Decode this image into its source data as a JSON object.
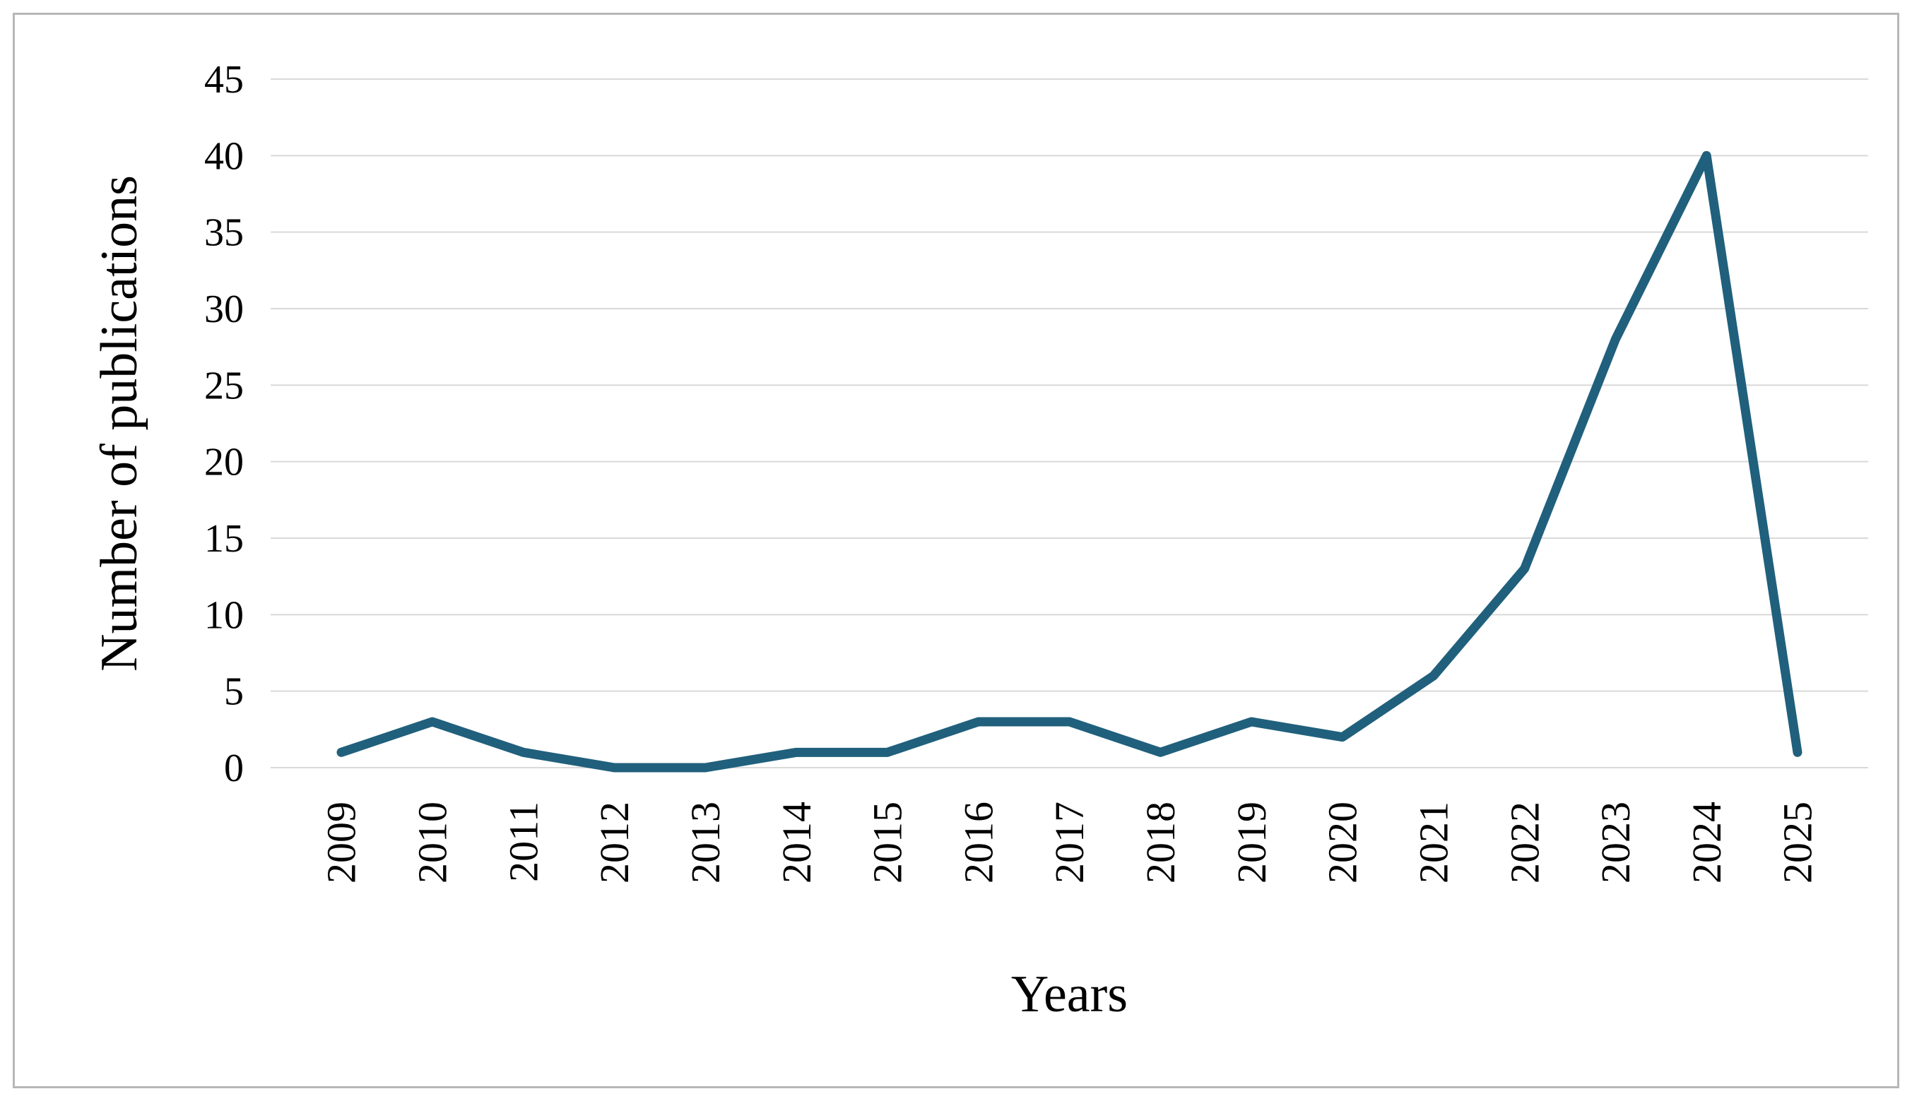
{
  "figure": {
    "border_color": "#b7b7b7",
    "background": "#ffffff"
  },
  "chart_data": {
    "type": "line",
    "title": "",
    "xlabel": "Years",
    "ylabel": "Number of publications",
    "categories": [
      "2009",
      "2010",
      "2011",
      "2012",
      "2013",
      "2014",
      "2015",
      "2016",
      "2017",
      "2018",
      "2019",
      "2020",
      "2021",
      "2022",
      "2023",
      "2024",
      "2025"
    ],
    "values": [
      1,
      3,
      1,
      0,
      0,
      1,
      1,
      3,
      3,
      1,
      3,
      2,
      6,
      13,
      28,
      40,
      1
    ],
    "ylim": [
      0,
      45
    ],
    "ytick_step": 5,
    "ytick_labels": [
      "0",
      "5",
      "10",
      "15",
      "20",
      "25",
      "30",
      "35",
      "40",
      "45"
    ],
    "grid": "horizontal",
    "legend": "none",
    "line_color": "#20607c",
    "gridline_color": "#d9d9d9",
    "text_color": "#000000"
  }
}
